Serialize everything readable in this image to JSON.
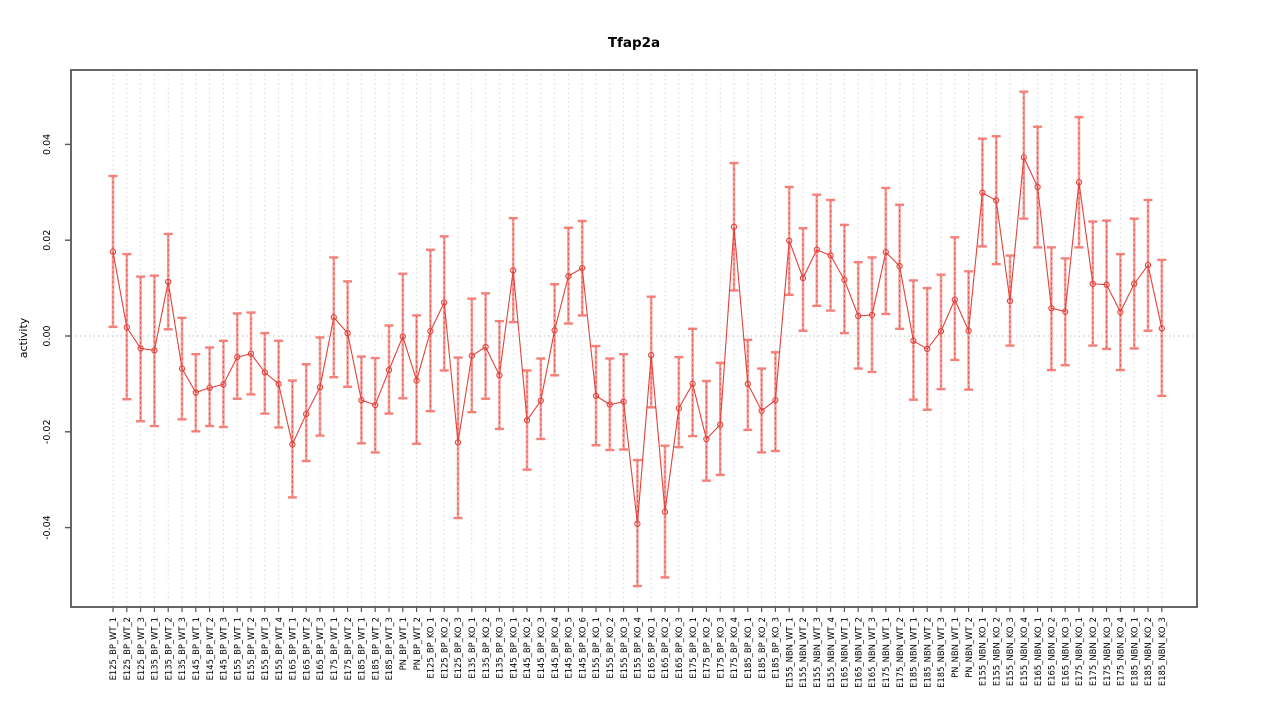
{
  "title": "Tfap2a",
  "colors": {
    "point_line": "#e2423b",
    "error_bar": "#f5918b",
    "error_cap": "#f4807a",
    "error_dash": "#e2423b",
    "grid": "#d9d9d9",
    "zero_line": "#bfbfbf",
    "box": "#565656",
    "text": "#000000"
  },
  "chart_data": {
    "type": "scatter",
    "title": "Tfap2a",
    "xlabel": "",
    "ylabel": "activity",
    "ylim": [
      -0.056,
      0.056
    ],
    "yticks": [
      -0.04,
      -0.02,
      0.0,
      0.02,
      0.04
    ],
    "grid": "vertical dotted line at every category; horizontal dotted line at y=0",
    "legend": "none",
    "marker": "open-circle",
    "error_bars": true,
    "categories": [
      "E125_BP_WT_1",
      "E125_BP_WT_2",
      "E125_BP_WT_3",
      "E135_BP_WT_1",
      "E135_BP_WT_2",
      "E135_BP_WT_3",
      "E145_BP_WT_1",
      "E145_BP_WT_2",
      "E145_BP_WT_3",
      "E155_BP_WT_1",
      "E155_BP_WT_2",
      "E155_BP_WT_3",
      "E155_BP_WT_4",
      "E165_BP_WT_1",
      "E165_BP_WT_2",
      "E165_BP_WT_3",
      "E175_BP_WT_1",
      "E175_BP_WT_2",
      "E185_BP_WT_1",
      "E185_BP_WT_2",
      "E185_BP_WT_3",
      "PN_BP_WT_1",
      "PN_BP_WT_2",
      "E125_BP_KO_1",
      "E125_BP_KO_2",
      "E125_BP_KO_3",
      "E135_BP_KO_1",
      "E135_BP_KO_2",
      "E135_BP_KO_3",
      "E145_BP_KO_1",
      "E145_BP_KO_2",
      "E145_BP_KO_3",
      "E145_BP_KO_4",
      "E145_BP_KO_5",
      "E145_BP_KO_6",
      "E155_BP_KO_1",
      "E155_BP_KO_2",
      "E155_BP_KO_3",
      "E155_BP_KO_4",
      "E165_BP_KO_1",
      "E165_BP_KO_2",
      "E165_BP_KO_3",
      "E175_BP_KO_1",
      "E175_BP_KO_2",
      "E175_BP_KO_3",
      "E175_BP_KO_4",
      "E185_BP_KO_1",
      "E185_BP_KO_2",
      "E185_BP_KO_3",
      "E155_NBN_WT_1",
      "E155_NBN_WT_2",
      "E155_NBN_WT_3",
      "E155_NBN_WT_4",
      "E165_NBN_WT_1",
      "E165_NBN_WT_2",
      "E165_NBN_WT_3",
      "E175_NBN_WT_1",
      "E175_NBN_WT_2",
      "E185_NBN_WT_1",
      "E185_NBN_WT_2",
      "E185_NBN_WT_3",
      "PN_NBN_WT_1",
      "PN_NBN_WT_2",
      "E155_NBN_KO_1",
      "E155_NBN_KO_2",
      "E155_NBN_KO_3",
      "E155_NBN_KO_4",
      "E165_NBN_KO_1",
      "E165_NBN_KO_2",
      "E165_NBN_KO_3",
      "E175_NBN_KO_1",
      "E175_NBN_KO_2",
      "E175_NBN_KO_3",
      "E175_NBN_KO_4",
      "E185_NBN_KO_1",
      "E185_NBN_KO_2",
      "E185_NBN_KO_3"
    ],
    "series": [
      {
        "name": "activity",
        "values": [
          0.0176,
          0.0018,
          -0.0026,
          -0.003,
          0.0113,
          -0.0068,
          -0.0118,
          -0.0108,
          -0.0101,
          -0.0044,
          -0.0037,
          -0.0076,
          -0.01,
          -0.0226,
          -0.0163,
          -0.0107,
          0.0039,
          0.0006,
          -0.0134,
          -0.0144,
          -0.0071,
          -0.0001,
          -0.0093,
          0.001,
          0.007,
          -0.0222,
          -0.0041,
          -0.0023,
          -0.0082,
          0.0137,
          -0.0176,
          -0.0135,
          0.0012,
          0.0125,
          0.0142,
          -0.0125,
          -0.0143,
          -0.0137,
          -0.0392,
          -0.004,
          -0.0367,
          -0.0151,
          -0.01,
          -0.0215,
          -0.0185,
          0.0228,
          -0.01,
          -0.0156,
          -0.0134,
          0.0199,
          0.0121,
          0.018,
          0.0168,
          0.0117,
          0.0042,
          0.0044,
          0.0175,
          0.0146,
          -0.001,
          -0.0027,
          0.001,
          0.0076,
          0.0011,
          0.0299,
          0.0283,
          0.0073,
          0.0373,
          0.0311,
          0.0058,
          0.0051,
          0.0321,
          0.0109,
          0.0107,
          0.005,
          0.0109,
          0.0148,
          0.0016
        ],
        "lower": [
          0.0019,
          -0.0132,
          -0.0178,
          -0.0188,
          0.0014,
          -0.0174,
          -0.0199,
          -0.0188,
          -0.019,
          -0.0131,
          -0.0122,
          -0.0162,
          -0.0191,
          -0.0337,
          -0.0261,
          -0.0208,
          -0.0086,
          -0.0106,
          -0.0224,
          -0.0243,
          -0.0162,
          -0.013,
          -0.0225,
          -0.0157,
          -0.0072,
          -0.038,
          -0.0159,
          -0.0131,
          -0.0194,
          0.0029,
          -0.0279,
          -0.0215,
          -0.0082,
          0.0026,
          0.0043,
          -0.0228,
          -0.0238,
          -0.0237,
          -0.0522,
          -0.0149,
          -0.0504,
          -0.0232,
          -0.0209,
          -0.0302,
          -0.029,
          0.0095,
          -0.0196,
          -0.0243,
          -0.024,
          0.0086,
          0.0011,
          0.0063,
          0.0053,
          0.0006,
          -0.0068,
          -0.0075,
          0.0046,
          0.0015,
          -0.0133,
          -0.0154,
          -0.0111,
          -0.005,
          -0.0112,
          0.0187,
          0.015,
          -0.002,
          0.0245,
          0.0185,
          -0.0071,
          -0.0061,
          0.0185,
          -0.002,
          -0.0027,
          -0.0071,
          -0.0026,
          0.0011,
          -0.0125
        ],
        "upper": [
          0.0334,
          0.0171,
          0.0124,
          0.0126,
          0.0213,
          0.0038,
          -0.0038,
          -0.0024,
          -0.001,
          0.0047,
          0.0049,
          0.0006,
          -0.001,
          -0.0093,
          -0.0059,
          -0.0003,
          0.0164,
          0.0114,
          -0.0043,
          -0.0046,
          0.0022,
          0.013,
          0.0043,
          0.018,
          0.0208,
          -0.0045,
          0.0078,
          0.0089,
          0.0031,
          0.0246,
          -0.0072,
          -0.0047,
          0.0108,
          0.0226,
          0.024,
          -0.0021,
          -0.0047,
          -0.0038,
          -0.0259,
          0.0082,
          -0.0229,
          -0.0044,
          0.0015,
          -0.0094,
          -0.0056,
          0.0361,
          -0.0008,
          -0.0068,
          -0.0034,
          0.0311,
          0.0225,
          0.0295,
          0.0284,
          0.0232,
          0.0154,
          0.0164,
          0.0309,
          0.0274,
          0.0116,
          0.01,
          0.0128,
          0.0206,
          0.0135,
          0.0412,
          0.0417,
          0.0168,
          0.051,
          0.0437,
          0.0185,
          0.0162,
          0.0457,
          0.0239,
          0.0241,
          0.0171,
          0.0245,
          0.0284,
          0.0159
        ]
      }
    ]
  }
}
